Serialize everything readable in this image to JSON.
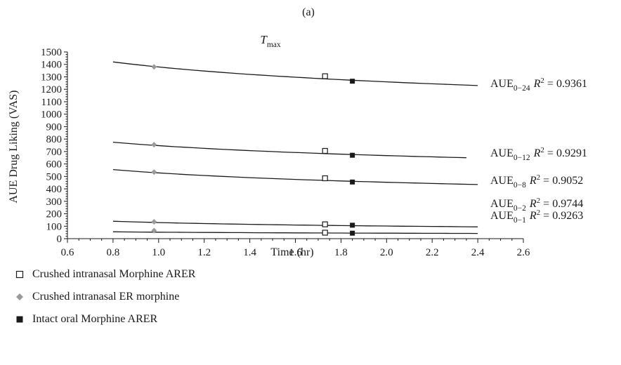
{
  "panel_label": "(a)",
  "chart_data": {
    "type": "scatter",
    "title_var": "T",
    "title_sub": "max",
    "xlabel": "Time (hr)",
    "ylabel": "AUE Drug Liking (VAS)",
    "xlim": [
      0.6,
      2.6
    ],
    "ylim": [
      0,
      1500
    ],
    "x_ticks": [
      0.6,
      0.8,
      1.0,
      1.2,
      1.4,
      1.6,
      1.8,
      2.0,
      2.2,
      2.4,
      2.6
    ],
    "x_tick_labels": [
      "0.6",
      "0.8",
      "1.0",
      "1.2",
      "1.4",
      "1.6",
      "1.8",
      "2.0",
      "2.2",
      "2.4",
      "2.6"
    ],
    "y_ticks": [
      0,
      100,
      200,
      300,
      400,
      500,
      600,
      700,
      800,
      900,
      1000,
      1100,
      1200,
      1300,
      1400,
      1500
    ],
    "y_tick_labels": [
      "0",
      "100",
      "200",
      "300",
      "400",
      "500",
      "600",
      "700",
      "800",
      "900",
      "1000",
      "1100",
      "1200",
      "1300",
      "1400",
      "1500"
    ],
    "markers": {
      "Crushed intranasal Morphine ARER": {
        "shape": "open-square",
        "color": "#1a1a1a"
      },
      "Crushed intranasal ER morphine": {
        "shape": "diamond",
        "color": "#9a9a9a"
      },
      "Intact oral Morphine ARER": {
        "shape": "filled-square",
        "color": "#1a1a1a"
      }
    },
    "series": [
      {
        "label_main": "AUE",
        "label_sub": "0−24",
        "r2": "0.9361",
        "curve": {
          "x": [
            0.8,
            2.4
          ],
          "y": [
            1420,
            1230
          ]
        },
        "points": [
          {
            "group": "Crushed intranasal ER morphine",
            "x": 0.98,
            "y": 1380
          },
          {
            "group": "Crushed intranasal Morphine ARER",
            "x": 1.73,
            "y": 1305
          },
          {
            "group": "Intact oral Morphine ARER",
            "x": 1.85,
            "y": 1265
          }
        ]
      },
      {
        "label_main": "AUE",
        "label_sub": "0−12",
        "r2": "0.9291",
        "curve": {
          "x": [
            0.8,
            2.35
          ],
          "y": [
            775,
            650
          ]
        },
        "points": [
          {
            "group": "Crushed intranasal ER morphine",
            "x": 0.98,
            "y": 755
          },
          {
            "group": "Crushed intranasal Morphine ARER",
            "x": 1.73,
            "y": 705
          },
          {
            "group": "Intact oral Morphine ARER",
            "x": 1.85,
            "y": 670
          }
        ]
      },
      {
        "label_main": "AUE",
        "label_sub": "0−8",
        "r2": "0.9052",
        "curve": {
          "x": [
            0.8,
            2.4
          ],
          "y": [
            555,
            435
          ]
        },
        "points": [
          {
            "group": "Crushed intranasal ER morphine",
            "x": 0.98,
            "y": 535
          },
          {
            "group": "Crushed intranasal Morphine ARER",
            "x": 1.73,
            "y": 485
          },
          {
            "group": "Intact oral Morphine ARER",
            "x": 1.85,
            "y": 455
          }
        ]
      },
      {
        "label_main": "AUE",
        "label_sub": "0−2",
        "r2": "0.9744",
        "curve": {
          "x": [
            0.8,
            2.4
          ],
          "y": [
            140,
            95
          ]
        },
        "points": [
          {
            "group": "Crushed intranasal ER morphine",
            "x": 0.98,
            "y": 135
          },
          {
            "group": "Crushed intranasal Morphine ARER",
            "x": 1.73,
            "y": 115
          },
          {
            "group": "Intact oral Morphine ARER",
            "x": 1.85,
            "y": 108
          }
        ]
      },
      {
        "label_main": "AUE",
        "label_sub": "0−1",
        "r2": "0.9263",
        "curve": {
          "x": [
            0.8,
            2.4
          ],
          "y": [
            55,
            42
          ]
        },
        "points": [
          {
            "group": "Crushed intranasal ER morphine",
            "x": 0.98,
            "y": 65
          },
          {
            "group": "Crushed intranasal Morphine ARER",
            "x": 1.73,
            "y": 48
          },
          {
            "group": "Intact oral Morphine ARER",
            "x": 1.85,
            "y": 44
          }
        ]
      }
    ],
    "legend": [
      {
        "label": "Crushed intranasal Morphine ARER",
        "marker": "open-square"
      },
      {
        "label": "Crushed intranasal ER morphine",
        "marker": "diamond"
      },
      {
        "label": "Intact oral Morphine ARER",
        "marker": "filled-square"
      }
    ],
    "legend_placement": "bottom-left"
  }
}
